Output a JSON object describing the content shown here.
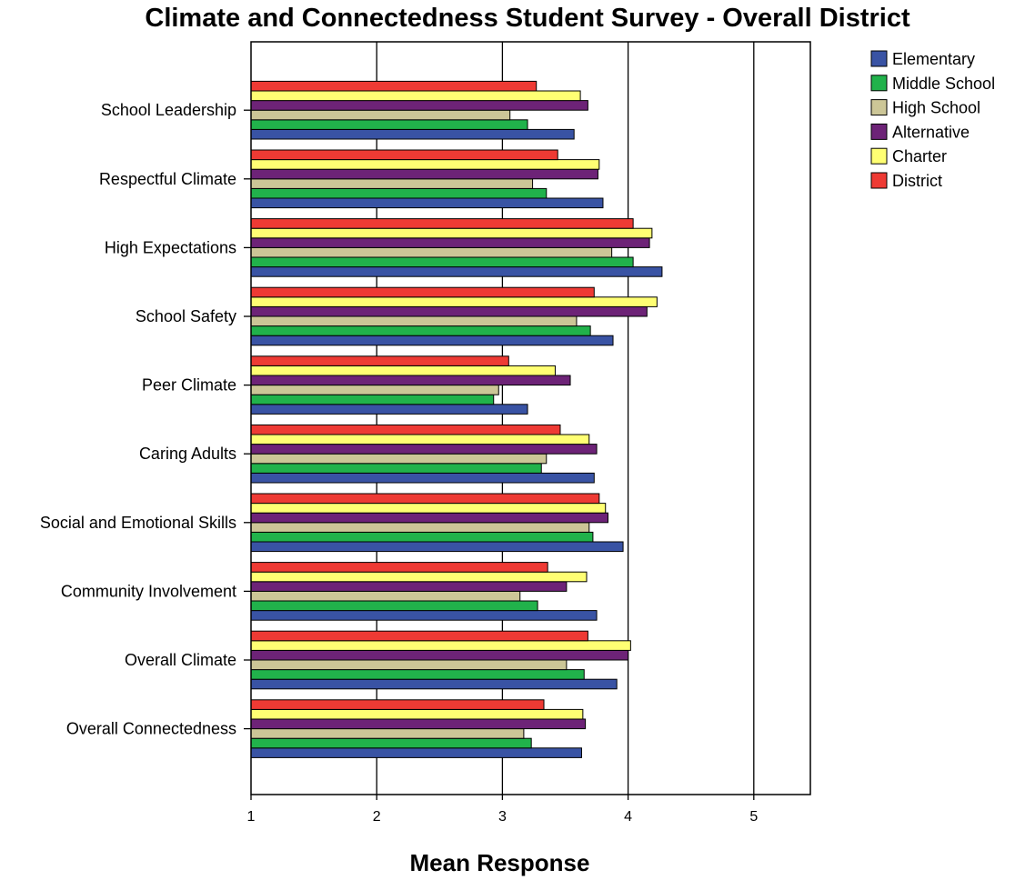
{
  "chart_data": {
    "type": "bar",
    "orientation": "horizontal",
    "title": "Climate and Connectedness Student Survey - Overall District",
    "xlabel": "Mean Response",
    "ylabel": "",
    "xlim": [
      1,
      5.45
    ],
    "xticks": [
      "1",
      "2",
      "3",
      "4",
      "5"
    ],
    "grid": true,
    "legend_position": "top-right",
    "categories": [
      "School Leadership",
      "Respectful Climate",
      "High Expectations",
      "School Safety",
      "Peer Climate",
      "Caring Adults",
      "Social and Emotional Skills",
      "Community Involvement",
      "Overall Climate",
      "Overall Connectedness"
    ],
    "series": [
      {
        "name": "Elementary",
        "color": "#3953a4",
        "values": [
          3.57,
          3.8,
          4.27,
          3.88,
          3.2,
          3.73,
          3.96,
          3.75,
          3.91,
          3.63
        ]
      },
      {
        "name": "Middle School",
        "color": "#21b24b",
        "values": [
          3.2,
          3.35,
          4.04,
          3.7,
          2.93,
          3.31,
          3.72,
          3.28,
          3.65,
          3.23
        ]
      },
      {
        "name": "High School",
        "color": "#ccc697",
        "values": [
          3.06,
          3.24,
          3.87,
          3.59,
          2.97,
          3.35,
          3.69,
          3.14,
          3.51,
          3.17
        ]
      },
      {
        "name": "Alternative",
        "color": "#6d2377",
        "values": [
          3.68,
          3.76,
          4.17,
          4.15,
          3.54,
          3.75,
          3.84,
          3.51,
          4.0,
          3.66
        ]
      },
      {
        "name": "Charter",
        "color": "#ffff73",
        "values": [
          3.62,
          3.77,
          4.19,
          4.23,
          3.42,
          3.69,
          3.82,
          3.67,
          4.02,
          3.64
        ]
      },
      {
        "name": "District",
        "color": "#ee3a34",
        "values": [
          3.27,
          3.44,
          4.04,
          3.73,
          3.05,
          3.46,
          3.77,
          3.36,
          3.68,
          3.33
        ]
      }
    ]
  }
}
